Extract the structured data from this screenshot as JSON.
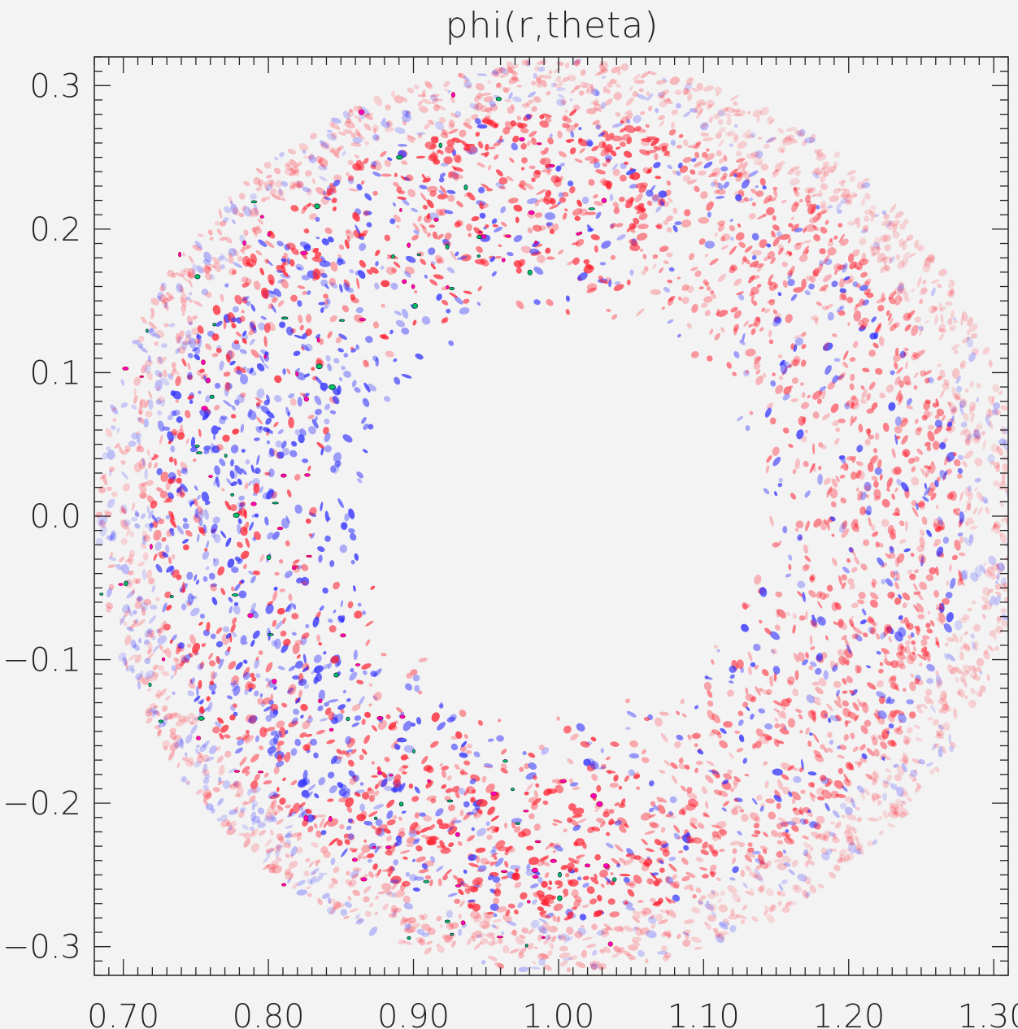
{
  "chart_data": {
    "type": "heatmap",
    "title": "phi(r,theta)",
    "xlabel": "",
    "ylabel": "",
    "xlim": [
      0.68,
      1.31
    ],
    "ylim": [
      -0.32,
      0.32
    ],
    "x_ticks": [
      0.7,
      0.8,
      0.9,
      1.0,
      1.1,
      1.2,
      1.3
    ],
    "x_tick_labels": [
      "0.70",
      "0.80",
      "0.90",
      "1.00",
      "1.10",
      "1.20",
      "1.30"
    ],
    "y_ticks": [
      0.3,
      0.2,
      0.1,
      0.0,
      -0.1,
      -0.2,
      -0.3
    ],
    "y_tick_labels": [
      "0.3",
      "0.2",
      "0.1",
      "0.0",
      "−0.1",
      "−0.2",
      "−0.3"
    ],
    "grid": false,
    "legend": "none",
    "field": {
      "description": "annular turbulent potential fluctuation field",
      "center": [
        1.0,
        0.0
      ],
      "inner_radius": 0.12,
      "outer_radius": 0.31,
      "positive_color": "#ff1f2f",
      "negative_color": "#2f2fff",
      "extreme_positive_color": "#ff00cc",
      "extreme_negative_color": "#00c060",
      "background_color": "#f3f3f3"
    }
  }
}
